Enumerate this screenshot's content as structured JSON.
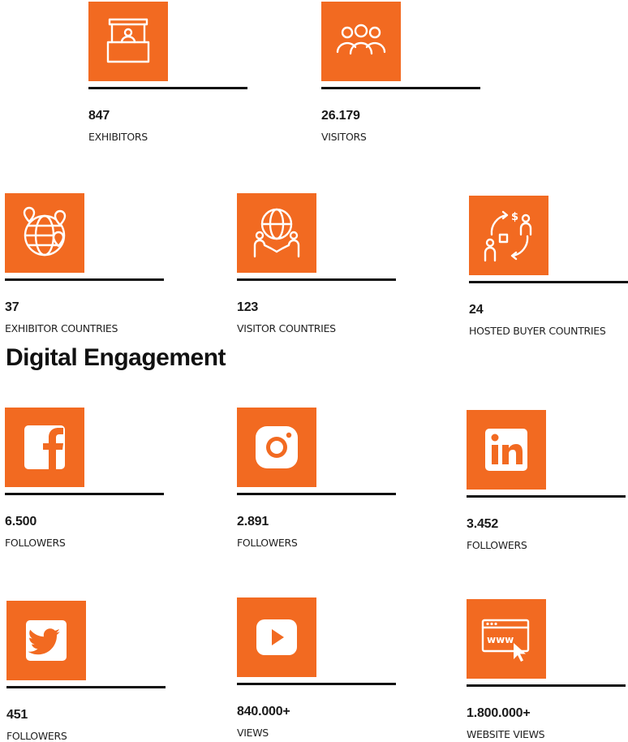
{
  "accent_color": "#f26a21",
  "stats": [
    {
      "id": "exhibitors",
      "icon": "exhibitor-booth-icon",
      "value": "847",
      "label": "EXHIBITORS"
    },
    {
      "id": "visitors",
      "icon": "people-group-icon",
      "value": "26.179",
      "label": "VISITORS"
    },
    {
      "id": "exhibitor-countries",
      "icon": "globe-pins-icon",
      "value": "37",
      "label": "EXHIBITOR COUNTRIES"
    },
    {
      "id": "visitor-countries",
      "icon": "globe-handshake-icon",
      "value": "123",
      "label": "VISITOR COUNTRIES"
    },
    {
      "id": "hosted-buyer-countries",
      "icon": "buyer-exchange-icon",
      "value": "24",
      "label": "HOSTED BUYER COUNTRIES"
    }
  ],
  "section_title": "Digital Engagement",
  "digital": [
    {
      "id": "facebook",
      "icon": "facebook-icon",
      "value": "6.500",
      "label": "FOLLOWERS"
    },
    {
      "id": "instagram",
      "icon": "instagram-icon",
      "value": "2.891",
      "label": "FOLLOWERS"
    },
    {
      "id": "linkedin",
      "icon": "linkedin-icon",
      "value": "3.452",
      "label": "FOLLOWERS"
    },
    {
      "id": "twitter",
      "icon": "twitter-icon",
      "value": "451",
      "label": "FOLLOWERS"
    },
    {
      "id": "youtube",
      "icon": "youtube-icon",
      "value": "840.000+",
      "label": "VIEWS"
    },
    {
      "id": "website",
      "icon": "website-browser-icon",
      "value": "1.800.000+",
      "label": "WEBSITE VIEWS"
    }
  ]
}
